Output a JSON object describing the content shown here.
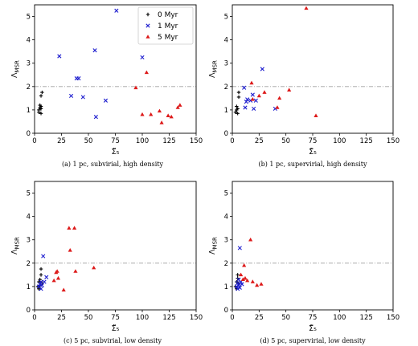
{
  "chart_data": [
    {
      "type": "scatter",
      "caption": "(a) 1 pc, subvirial, high density",
      "xlabel": "Σ̃₅",
      "ylabel": "Λ_MSR",
      "xlim": [
        0,
        150
      ],
      "ylim": [
        0,
        5.5
      ],
      "xticks": [
        "0",
        "25",
        "50",
        "75",
        "100",
        "125",
        "150"
      ],
      "yticks": [
        "0",
        "1",
        "2",
        "3",
        "4",
        "5"
      ],
      "reference_line": 2,
      "legend": {
        "position": "top-right"
      },
      "series": [
        {
          "name": "0 Myr",
          "marker": "plus",
          "color": "#000000",
          "x": [
            4,
            4,
            5,
            5,
            6,
            6,
            6,
            6,
            7
          ],
          "y": [
            0.9,
            1.0,
            1.1,
            1.2,
            0.85,
            1.05,
            1.15,
            1.6,
            1.75
          ]
        },
        {
          "name": "1 Myr",
          "marker": "x",
          "color": "#1f1fcf",
          "x": [
            23,
            34,
            39,
            41,
            45,
            56,
            57,
            66,
            76,
            100
          ],
          "y": [
            3.3,
            1.6,
            2.35,
            2.35,
            1.55,
            3.55,
            0.7,
            1.4,
            5.25,
            3.25
          ]
        },
        {
          "name": "5 Myr",
          "marker": "triangle",
          "color": "#dd1a1a",
          "x": [
            94,
            100,
            104,
            108,
            116,
            118,
            124,
            127,
            133,
            135
          ],
          "y": [
            1.95,
            0.8,
            2.6,
            0.8,
            0.95,
            0.45,
            0.75,
            0.7,
            1.1,
            1.2
          ]
        }
      ]
    },
    {
      "type": "scatter",
      "caption": "(b) 1 pc, supervirial, high density",
      "xlabel": "Σ̃₅",
      "ylabel": "Λ_MSR",
      "xlim": [
        0,
        150
      ],
      "ylim": [
        0,
        5.5
      ],
      "xticks": [
        "0",
        "25",
        "50",
        "75",
        "100",
        "125",
        "150"
      ],
      "yticks": [
        "0",
        "1",
        "2",
        "3",
        "4",
        "5"
      ],
      "reference_line": 2,
      "series": [
        {
          "name": "0 Myr",
          "marker": "plus",
          "color": "#000000",
          "x": [
            3,
            4,
            4,
            5,
            5,
            6,
            6
          ],
          "y": [
            0.9,
            1.0,
            1.15,
            0.85,
            1.05,
            1.55,
            1.75
          ]
        },
        {
          "name": "1 Myr",
          "marker": "x",
          "color": "#1f1fcf",
          "x": [
            11,
            12,
            13,
            14,
            17,
            19,
            20,
            22,
            28,
            40
          ],
          "y": [
            1.95,
            1.1,
            1.35,
            1.45,
            1.4,
            1.65,
            1.05,
            1.4,
            2.75,
            1.05
          ]
        },
        {
          "name": "5 Myr",
          "marker": "triangle",
          "color": "#dd1a1a",
          "x": [
            18,
            19,
            25,
            30,
            42,
            44,
            53,
            69,
            78
          ],
          "y": [
            2.15,
            1.45,
            1.6,
            1.75,
            1.1,
            1.5,
            1.85,
            5.35,
            0.75
          ]
        }
      ]
    },
    {
      "type": "scatter",
      "caption": "(c) 5 pc, subvirial, low density",
      "xlabel": "Σ̃₅",
      "ylabel": "Λ_MSR",
      "xlim": [
        0,
        150
      ],
      "ylim": [
        0,
        5.5
      ],
      "xticks": [
        "0",
        "25",
        "50",
        "75",
        "100",
        "125",
        "150"
      ],
      "yticks": [
        "0",
        "1",
        "2",
        "3",
        "4",
        "5"
      ],
      "reference_line": 2,
      "series": [
        {
          "name": "0 Myr",
          "marker": "plus",
          "color": "#000000",
          "x": [
            3,
            4,
            4,
            5,
            5,
            6,
            6,
            7
          ],
          "y": [
            1.0,
            0.9,
            1.2,
            1.05,
            1.3,
            1.5,
            1.75,
            1.15
          ]
        },
        {
          "name": "1 Myr",
          "marker": "x",
          "color": "#1f1fcf",
          "x": [
            4,
            5,
            6,
            6,
            7,
            8,
            9,
            11
          ],
          "y": [
            1.0,
            1.1,
            0.9,
            1.2,
            1.05,
            2.3,
            1.2,
            1.4
          ]
        },
        {
          "name": "5 Myr",
          "marker": "triangle",
          "color": "#dd1a1a",
          "x": [
            18,
            20,
            21,
            22,
            27,
            32,
            33,
            37,
            38,
            55
          ],
          "y": [
            1.25,
            1.6,
            1.65,
            1.35,
            0.85,
            3.5,
            2.55,
            3.5,
            1.65,
            1.8
          ]
        }
      ]
    },
    {
      "type": "scatter",
      "caption": "(d) 5 pc, supervirial, low density",
      "xlabel": "Σ̃₅",
      "ylabel": "Λ_MSR",
      "xlim": [
        0,
        150
      ],
      "ylim": [
        0,
        5.5
      ],
      "xticks": [
        "0",
        "25",
        "50",
        "75",
        "100",
        "125",
        "150"
      ],
      "yticks": [
        "0",
        "1",
        "2",
        "3",
        "4",
        "5"
      ],
      "reference_line": 2,
      "series": [
        {
          "name": "0 Myr",
          "marker": "plus",
          "color": "#000000",
          "x": [
            3,
            4,
            4,
            5,
            5,
            6
          ],
          "y": [
            1.0,
            0.9,
            1.2,
            1.35,
            1.5,
            1.1
          ]
        },
        {
          "name": "1 Myr",
          "marker": "x",
          "color": "#1f1fcf",
          "x": [
            4,
            5,
            5,
            6,
            6,
            7,
            7,
            8,
            9
          ],
          "y": [
            1.0,
            0.9,
            1.15,
            1.3,
            1.05,
            0.95,
            2.65,
            1.2,
            1.1
          ]
        },
        {
          "name": "5 Myr",
          "marker": "triangle",
          "color": "#dd1a1a",
          "x": [
            8,
            10,
            11,
            12,
            14,
            17,
            19,
            23,
            27
          ],
          "y": [
            1.5,
            1.3,
            1.9,
            1.35,
            1.25,
            3.0,
            1.2,
            1.05,
            1.1
          ]
        }
      ]
    }
  ]
}
